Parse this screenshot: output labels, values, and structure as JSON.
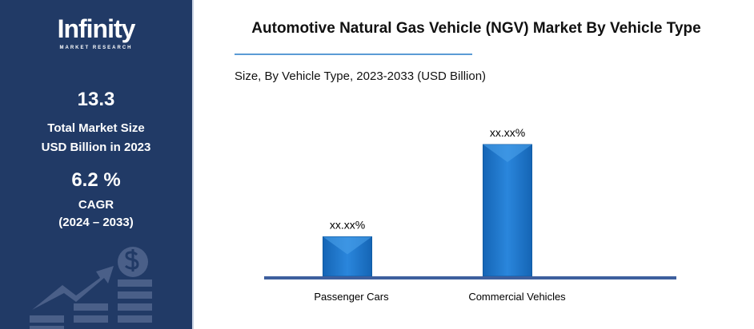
{
  "sidebar": {
    "logo": "Infinity",
    "logo_sub": "MARKET RESEARCH",
    "market_size": "13.3",
    "market_size_label1": "Total Market Size",
    "market_size_label2": "USD Billion in 2023",
    "cagr": "6.2 %",
    "cagr_label": "CAGR",
    "cagr_period": "(2024 – 2033)"
  },
  "chart_data": {
    "type": "bar",
    "title": "Automotive Natural Gas Vehicle (NGV) Market By Vehicle Type",
    "subtitle": "Size, By Vehicle Type, 2023-2033 (USD Billion)",
    "categories": [
      "Passenger Cars",
      "Commercial Vehicles"
    ],
    "values": [
      0.3,
      1.0
    ],
    "data_labels": [
      "xx.xx%",
      "xx.xx%"
    ],
    "bar_color": "#1a75c9",
    "axis_color": "#3d5f9e",
    "grid": false
  }
}
